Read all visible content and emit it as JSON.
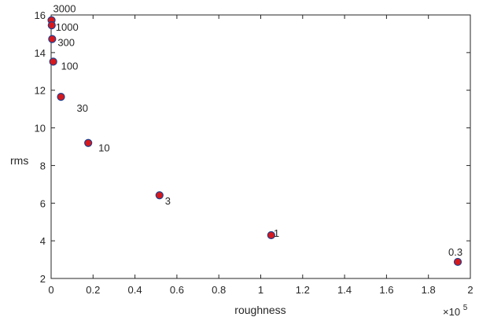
{
  "chart_data": {
    "type": "scatter",
    "title": "",
    "xlabel": "roughness",
    "ylabel": "rms",
    "x_multiplier_label": "×10",
    "x_multiplier_exponent": "5",
    "xlim": [
      0,
      200000
    ],
    "ylim": [
      2,
      16
    ],
    "grid": false,
    "x_ticks": [
      0,
      20000,
      40000,
      60000,
      80000,
      100000,
      120000,
      140000,
      160000,
      180000,
      200000
    ],
    "x_tick_labels": [
      "0",
      "0.2",
      "0.4",
      "0.6",
      "0.8",
      "1",
      "1.2",
      "1.4",
      "1.6",
      "1.8",
      "2"
    ],
    "y_ticks": [
      2,
      4,
      6,
      8,
      10,
      12,
      14,
      16
    ],
    "y_tick_labels": [
      "2",
      "4",
      "6",
      "8",
      "10",
      "12",
      "14",
      "16"
    ],
    "marker_fill": "#d7191c",
    "marker_stroke": "#1f3f8f",
    "points": [
      {
        "label": "3000",
        "x": 200,
        "y": 15.72
      },
      {
        "label": "1000",
        "x": 300,
        "y": 15.45
      },
      {
        "label": "300",
        "x": 500,
        "y": 14.72
      },
      {
        "label": "100",
        "x": 1000,
        "y": 13.52
      },
      {
        "label": "30",
        "x": 4700,
        "y": 11.65
      },
      {
        "label": "10",
        "x": 17700,
        "y": 9.2
      },
      {
        "label": "3",
        "x": 51700,
        "y": 6.42
      },
      {
        "label": "1",
        "x": 105000,
        "y": 4.3
      },
      {
        "label": "0.3",
        "x": 194000,
        "y": 2.88
      }
    ]
  }
}
